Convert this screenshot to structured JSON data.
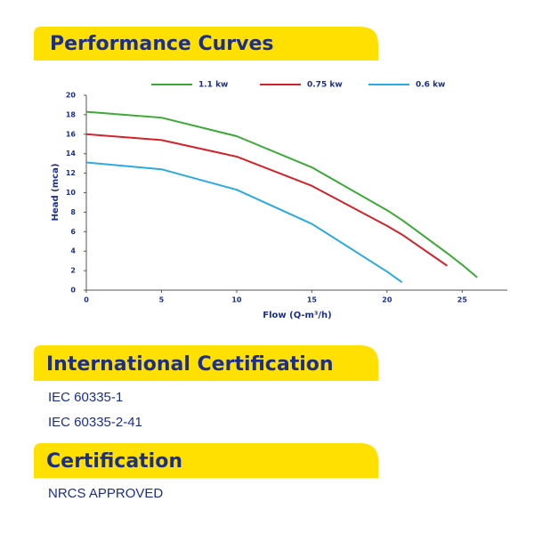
{
  "sections": [
    {
      "title": "Performance Curves"
    },
    {
      "title": "International Certification",
      "items": [
        "IEC 60335-1",
        "IEC 60335-2-41"
      ]
    },
    {
      "title": "Certification",
      "items": [
        "NRCS APPROVED"
      ]
    }
  ],
  "chart_data": {
    "type": "line",
    "x_label": "Flow (Q-m³/h)",
    "y_label": "Head (mca)",
    "x": [
      0,
      5,
      10,
      15,
      20,
      21,
      24,
      25,
      26
    ],
    "series": [
      {
        "name": "1.1 kw",
        "color": "#3aaa35",
        "values": [
          18.3,
          17.7,
          15.8,
          12.6,
          8.2,
          7.2,
          3.8,
          2.6,
          1.3
        ]
      },
      {
        "name": "0.75 kw",
        "color": "#d2232a",
        "values": [
          16,
          15.4,
          13.7,
          10.7,
          6.6,
          5.7,
          2.5,
          null,
          null
        ]
      },
      {
        "name": "0.6 kw",
        "color": "#29abe2",
        "values": [
          13.1,
          12.4,
          10.3,
          6.8,
          1.9,
          0.8,
          null,
          null,
          null
        ]
      }
    ],
    "xlim": [
      0,
      28
    ],
    "xticks": [
      0,
      5,
      10,
      15,
      20,
      25
    ],
    "ylim": [
      0,
      20
    ],
    "yticks": [
      0,
      2,
      4,
      6,
      8,
      10,
      12,
      14,
      16,
      18,
      20
    ]
  }
}
